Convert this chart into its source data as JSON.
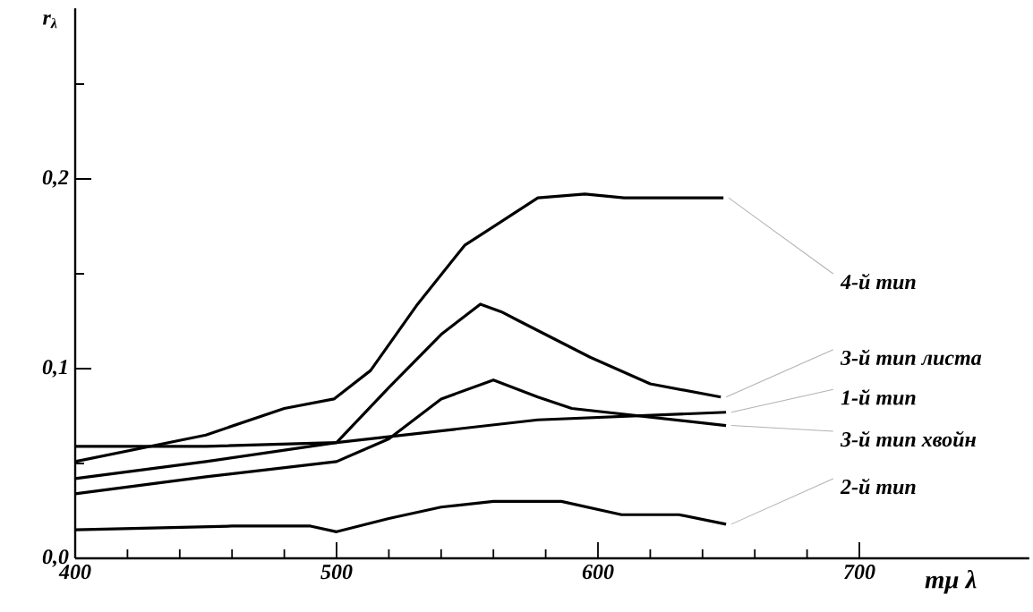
{
  "chart_data": {
    "type": "line",
    "xlabel": "mμ λ",
    "ylabel": "r$_{λ}$",
    "xlim": [
      400,
      765
    ],
    "ylim": [
      0,
      0.29
    ],
    "xticks": [
      400,
      {
        "value": 420,
        "label": null
      },
      {
        "value": 440,
        "label": null
      },
      {
        "value": 460,
        "label": null
      },
      {
        "value": 480,
        "label": null
      },
      500,
      {
        "value": 520,
        "label": null
      },
      {
        "value": 540,
        "label": null
      },
      {
        "value": 560,
        "label": null
      },
      {
        "value": 580,
        "label": null
      },
      600,
      {
        "value": 620,
        "label": null
      },
      {
        "value": 640,
        "label": null
      },
      {
        "value": 660,
        "label": null
      },
      {
        "value": 680,
        "label": null
      },
      700
    ],
    "yticks": [
      {
        "value": 0,
        "label": "0,0"
      },
      {
        "value": 0.05,
        "label": null
      },
      {
        "value": 0.1,
        "label": "0,1"
      },
      {
        "value": 0.15,
        "label": null
      },
      {
        "value": 0.2,
        "label": "0,2"
      },
      {
        "value": 0.25,
        "label": null
      }
    ],
    "grid": false,
    "marker": "none",
    "line_style": "solid",
    "series": [
      {
        "name": "4-й тип",
        "color": "#000000",
        "x": [
          400,
          450,
          480,
          499,
          513,
          531,
          549,
          577,
          595,
          610,
          630,
          648
        ],
        "values": [
          0.051,
          0.065,
          0.079,
          0.084,
          0.099,
          0.134,
          0.165,
          0.19,
          0.192,
          0.19,
          0.19,
          0.19
        ]
      },
      {
        "name": "3-й тип листа",
        "color": "#000000",
        "x": [
          400,
          450,
          500,
          520,
          540,
          555,
          563,
          570,
          597,
          620,
          647
        ],
        "values": [
          0.042,
          0.051,
          0.061,
          0.09,
          0.118,
          0.134,
          0.13,
          0.125,
          0.106,
          0.092,
          0.085
        ]
      },
      {
        "name": "1-й тип",
        "color": "#000000",
        "x": [
          400,
          450,
          500,
          577,
          649
        ],
        "values": [
          0.059,
          0.059,
          0.061,
          0.073,
          0.077
        ]
      },
      {
        "name": "3-й тип хвойн",
        "color": "#000000",
        "x": [
          400,
          450,
          500,
          520,
          540,
          560,
          577,
          590,
          649
        ],
        "values": [
          0.034,
          0.043,
          0.051,
          0.063,
          0.084,
          0.094,
          0.085,
          0.079,
          0.07
        ]
      },
      {
        "name": "2-й тип",
        "color": "#000000",
        "x": [
          400,
          460,
          490,
          500,
          520,
          540,
          560,
          586,
          609,
          631,
          649
        ],
        "values": [
          0.015,
          0.017,
          0.017,
          0.014,
          0.021,
          0.027,
          0.03,
          0.03,
          0.023,
          0.023,
          0.018
        ]
      }
    ]
  }
}
